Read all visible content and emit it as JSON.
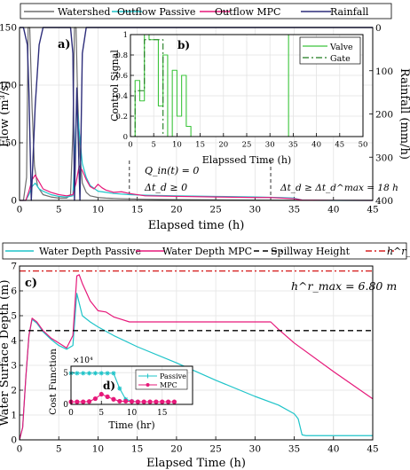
{
  "chart_data": [
    {
      "type": "line",
      "panel": "a)",
      "xlabel": "Elapsed time (h)",
      "ylabel": "Flow (m³/s)",
      "ylabel_right": "Rainfall (mm/h)",
      "xlim": [
        0,
        45
      ],
      "ylim": [
        0,
        150
      ],
      "ylim_right_inverted": [
        0,
        400
      ],
      "xticks": [
        "0",
        "5",
        "10",
        "15",
        "20",
        "25",
        "30",
        "35",
        "40",
        "45"
      ],
      "yticks": [
        "0",
        "50",
        "100",
        "150"
      ],
      "yticks_right": [
        "0",
        "100",
        "200",
        "300",
        "400"
      ],
      "legend": {
        "placement": "top",
        "entries": [
          "Watershed",
          "Outflow Passive",
          "Outflow MPC",
          "Rainfall"
        ]
      },
      "series": [
        {
          "name": "Watershed",
          "color": "#6e6e6e",
          "x": [
            0,
            0.5,
            0.9,
            1.1,
            1.3,
            1.6,
            1.9,
            2.3,
            3,
            4,
            5,
            6,
            6.5,
            6.8,
            7.0,
            7.2,
            7.4,
            7.7,
            8,
            8.5,
            9,
            10,
            11,
            13,
            16,
            20,
            25,
            30,
            35,
            45
          ],
          "y": [
            0,
            0,
            20,
            150,
            150,
            80,
            30,
            12,
            5,
            3,
            2,
            2,
            5,
            60,
            150,
            150,
            90,
            40,
            15,
            7,
            4,
            2.5,
            2,
            1.5,
            1,
            0.7,
            0.5,
            0.3,
            0.2,
            0.1
          ]
        },
        {
          "name": "Outflow Passive",
          "color": "#1fc4c9",
          "x": [
            0,
            0.8,
            1.2,
            1.6,
            2,
            2.5,
            3,
            4,
            5,
            6,
            6.8,
            7.1,
            7.3,
            7.6,
            8,
            8.5,
            9,
            10,
            11,
            12,
            14,
            16,
            20,
            25,
            30,
            33,
            35,
            36,
            37,
            45
          ],
          "y": [
            0,
            0,
            5,
            12,
            15,
            10,
            8,
            5,
            3.5,
            3,
            4,
            50,
            86,
            60,
            32,
            20,
            13,
            8,
            7,
            6,
            5,
            4.5,
            4,
            3.5,
            3,
            2.5,
            2,
            0.3,
            0.05,
            0
          ]
        },
        {
          "name": "Outflow MPC",
          "color": "#e6197a",
          "x": [
            0,
            0.8,
            1.2,
            1.6,
            2,
            2.5,
            3,
            4,
            5,
            6,
            6.8,
            7.2,
            7.6,
            8,
            8.5,
            9,
            9.5,
            10,
            10.5,
            11,
            12,
            13,
            14,
            16,
            20,
            25,
            30,
            32,
            35,
            36,
            40,
            45
          ],
          "y": [
            0,
            0,
            8,
            18,
            22,
            16,
            10,
            7,
            5,
            4,
            5,
            15,
            30,
            26,
            18,
            12,
            10,
            14,
            11,
            9,
            7,
            7.5,
            6,
            4,
            3.5,
            3,
            2.5,
            2.5,
            1.5,
            0.3,
            0.05,
            0
          ]
        },
        {
          "name": "Rainfall",
          "color": "#2d2d7a",
          "x": [
            0,
            0.5,
            1,
            1.2,
            1.5,
            2,
            2.5,
            3,
            5,
            6.5,
            6.8,
            7,
            7.3,
            7.7,
            8,
            8.5,
            10,
            45
          ],
          "y": [
            0,
            0,
            40,
            150,
            400,
            180,
            40,
            0,
            0,
            0,
            60,
            400,
            140,
            400,
            60,
            0,
            0,
            0
          ]
        }
      ],
      "annotations": [
        {
          "text": "a)"
        },
        {
          "text": "Q_in(t) = 0"
        },
        {
          "text": "Δt_d ≥ 0"
        },
        {
          "text": "Δt_d ≥ Δt_d^max = 18 h"
        }
      ],
      "vlines": [
        14,
        32
      ]
    },
    {
      "type": "line",
      "panel": "b)",
      "xlabel": "Elapssed Time (h)",
      "ylabel": "Control Signal",
      "xlim": [
        0,
        50
      ],
      "ylim": [
        0,
        1
      ],
      "xticks": [
        "0",
        "5",
        "10",
        "15",
        "20",
        "25",
        "30",
        "35",
        "40",
        "45",
        "50"
      ],
      "yticks": [
        "0",
        "0.2",
        "0.4",
        "0.6",
        "0.8",
        "1"
      ],
      "legend": {
        "placement": "top-right",
        "entries": [
          "Valve",
          "Gate"
        ]
      },
      "series": [
        {
          "name": "Valve",
          "color": "#3cc43c",
          "style": "solid",
          "x": [
            0,
            1,
            1,
            2,
            2,
            3,
            3,
            4,
            4,
            6,
            6,
            7,
            7,
            8,
            8,
            9,
            9,
            10,
            10,
            11,
            11,
            12,
            12,
            13,
            13,
            34,
            34,
            50
          ],
          "y": [
            0,
            0,
            0.55,
            0.55,
            0.35,
            0.35,
            1,
            1,
            0.95,
            0.95,
            0.3,
            0.3,
            0.8,
            0.8,
            0,
            0,
            0.65,
            0.65,
            0.2,
            0.2,
            0.6,
            0.6,
            0.1,
            0.1,
            0,
            0,
            1,
            1
          ]
        },
        {
          "name": "Gate",
          "color": "#1d7a1d",
          "style": "dashdot",
          "x": [
            0,
            1,
            1,
            3,
            3,
            7,
            7,
            50
          ],
          "y": [
            0,
            0,
            0.45,
            0.45,
            0.95,
            0.95,
            0,
            0
          ]
        }
      ]
    },
    {
      "type": "line",
      "panel": "c)",
      "xlabel": "Elapsed Time (h)",
      "ylabel": "Water Surface Depth (m)",
      "xlim": [
        0,
        45
      ],
      "ylim": [
        0,
        7
      ],
      "xticks": [
        "0",
        "5",
        "10",
        "15",
        "20",
        "25",
        "30",
        "35",
        "40",
        "45"
      ],
      "yticks": [
        "0",
        "1",
        "2",
        "3",
        "4",
        "5",
        "6",
        "7"
      ],
      "legend": {
        "placement": "top",
        "entries": [
          "Water Depth Passive",
          "Water Depth MPC",
          "Spillway Height",
          "h^r_max"
        ]
      },
      "series": [
        {
          "name": "Water Depth Passive",
          "color": "#1fc4c9",
          "x": [
            0,
            0.4,
            0.8,
            1.2,
            1.6,
            2.2,
            3,
            4,
            5,
            6,
            6.8,
            7.3,
            8,
            9,
            10,
            12,
            15,
            20,
            25,
            30,
            33,
            35,
            35.5,
            36,
            36.5,
            45
          ],
          "y": [
            0,
            0.5,
            2.5,
            4.2,
            4.85,
            4.7,
            4.35,
            4.05,
            3.8,
            3.65,
            3.8,
            5.9,
            5.0,
            4.75,
            4.55,
            4.2,
            3.75,
            3.1,
            2.4,
            1.75,
            1.4,
            1.05,
            0.85,
            0.2,
            0.17,
            0.17
          ]
        },
        {
          "name": "Water Depth MPC",
          "color": "#e6197a",
          "x": [
            0,
            0.4,
            0.8,
            1.2,
            1.6,
            2.2,
            3,
            4,
            5,
            6,
            6.8,
            7.3,
            7.6,
            8,
            9,
            10,
            11,
            12,
            13,
            14,
            15,
            20,
            25,
            30,
            32,
            33,
            35,
            40,
            45
          ],
          "y": [
            0,
            0.5,
            2.5,
            4.2,
            4.9,
            4.75,
            4.4,
            4.1,
            3.9,
            3.7,
            4.2,
            6.6,
            6.65,
            6.3,
            5.6,
            5.2,
            5.15,
            4.95,
            4.85,
            4.75,
            4.75,
            4.75,
            4.75,
            4.75,
            4.75,
            4.45,
            3.9,
            2.75,
            1.65
          ]
        },
        {
          "name": "Spillway Height",
          "color": "#000000",
          "style": "dashed",
          "y_const": 4.4
        },
        {
          "name": "h^r_max",
          "color": "#d62020",
          "style": "dashdot",
          "y_const": 6.8
        }
      ],
      "annotations": [
        {
          "text": "c)"
        },
        {
          "text": "h^r_max = 6.80 m"
        }
      ]
    },
    {
      "type": "line",
      "panel": "d)",
      "xlabel": "Time (hr)",
      "ylabel": "Cost Function",
      "xlim": [
        0,
        20
      ],
      "ylim": [
        0,
        6
      ],
      "y_multiplier": "×10⁴",
      "xticks": [
        "0",
        "5",
        "10",
        "15"
      ],
      "yticks": [
        "0",
        "5"
      ],
      "legend": {
        "placement": "right",
        "entries": [
          "Passive",
          "MPC"
        ]
      },
      "series": [
        {
          "name": "Passive",
          "color": "#1fc4c9",
          "marker": "asterisk",
          "x": [
            0,
            1,
            2,
            3,
            4,
            5,
            6,
            7,
            8,
            9,
            10,
            11
          ],
          "y": [
            4.9,
            4.9,
            4.9,
            4.9,
            4.9,
            4.9,
            4.9,
            4.9,
            2.5,
            0.8,
            0.5,
            0.4
          ]
        },
        {
          "name": "MPC",
          "color": "#e6197a",
          "marker": "circle",
          "x": [
            0,
            1,
            2,
            3,
            4,
            5,
            6,
            7,
            8,
            9,
            10,
            11,
            12,
            13,
            14,
            15,
            16,
            17
          ],
          "y": [
            0.4,
            0.4,
            0.4,
            0.45,
            0.9,
            1.6,
            1.2,
            0.8,
            0.5,
            0.5,
            0.45,
            0.4,
            0.4,
            0.4,
            0.4,
            0.4,
            0.4,
            0.4
          ]
        }
      ],
      "annotations": [
        {
          "text": "d)"
        }
      ]
    }
  ]
}
